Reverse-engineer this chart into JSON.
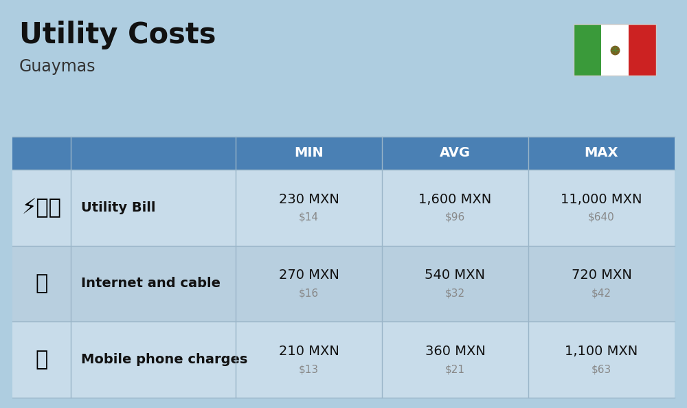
{
  "title": "Utility Costs",
  "subtitle": "Guaymas",
  "background_color": "#aecde0",
  "header_bg_color": "#4a80b4",
  "header_text_color": "#ffffff",
  "row_bg_color_odd": "#c8dcea",
  "row_bg_color_even": "#b8cfdf",
  "separator_color": "#9ab5c8",
  "title_color": "#111111",
  "subtitle_color": "#333333",
  "label_color": "#111111",
  "value_color": "#111111",
  "usd_color": "#888888",
  "headers": [
    "MIN",
    "AVG",
    "MAX"
  ],
  "rows": [
    {
      "label": "Utility Bill",
      "min_mxn": "230 MXN",
      "min_usd": "$14",
      "avg_mxn": "1,600 MXN",
      "avg_usd": "$96",
      "max_mxn": "11,000 MXN",
      "max_usd": "$640",
      "icon": "⚡🔧💧"
    },
    {
      "label": "Internet and cable",
      "min_mxn": "270 MXN",
      "min_usd": "$16",
      "avg_mxn": "540 MXN",
      "avg_usd": "$32",
      "max_mxn": "720 MXN",
      "max_usd": "$42",
      "icon": "📶"
    },
    {
      "label": "Mobile phone charges",
      "min_mxn": "210 MXN",
      "min_usd": "$13",
      "avg_mxn": "360 MXN",
      "avg_usd": "$21",
      "max_mxn": "1,100 MXN",
      "max_usd": "$63",
      "icon": "📱"
    }
  ],
  "title_fontsize": 30,
  "subtitle_fontsize": 17,
  "header_fontsize": 14,
  "label_fontsize": 14,
  "value_fontsize": 14,
  "usd_fontsize": 11,
  "icon_fontsize": 22,
  "flag_green": "#3a9a3a",
  "flag_white": "#ffffff",
  "flag_red": "#cc2222",
  "flag_eagle_color": "#8b6914"
}
